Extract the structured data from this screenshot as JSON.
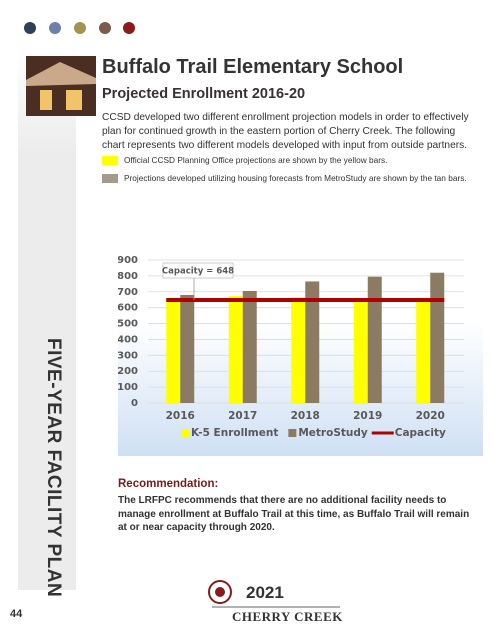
{
  "header": {
    "sidebar": "FIVE-YEAR FACILITY PLAN",
    "page_number": "44"
  },
  "title": "Buffalo Trail Elementary School",
  "subtitle": "Projected Enrollment 2016-20",
  "intro": "CCSD developed two different enrollment projection models in order to effectively plan for continued growth in the eastern portion of Cherry Creek. The following chart represents two different models developed with input from outside partners.",
  "legend_notes": [
    {
      "color": "#ffff00",
      "text": "Official CCSD Planning Office projections are shown by the yellow bars."
    },
    {
      "color": "#a39a8c",
      "text": "Projections developed utilizing housing forecasts from MetroStudy are shown by the tan bars."
    }
  ],
  "chart_data": {
    "type": "bar",
    "categories": [
      "2016",
      "2017",
      "2018",
      "2019",
      "2020"
    ],
    "series": [
      {
        "name": "K-5 Enrollment",
        "color": "#ffff00",
        "values": [
          660,
          673,
          667,
          635,
          642
        ]
      },
      {
        "name": "MetroStudy",
        "color": "#8b7b63",
        "values": [
          680,
          705,
          765,
          795,
          820
        ]
      },
      {
        "name": "Capacity",
        "type": "line",
        "color": "#b00000",
        "values": [
          648,
          648,
          648,
          648,
          648
        ]
      }
    ],
    "annotation": "Capacity = 648",
    "ylim": [
      0,
      900
    ],
    "yticks": [
      0,
      100,
      200,
      300,
      400,
      500,
      600,
      700,
      800,
      900
    ],
    "grid": true,
    "legend": "bottom"
  },
  "recommendation": {
    "heading": "Recommendation:",
    "text": "The LRFPC recommends that there are no additional facility needs to manage enrollment at Buffalo Trail at this time, as Buffalo Trail will remain at or near capacity through 2020."
  },
  "footer": {
    "year": "2021",
    "name": "CHERRY CREEK"
  }
}
